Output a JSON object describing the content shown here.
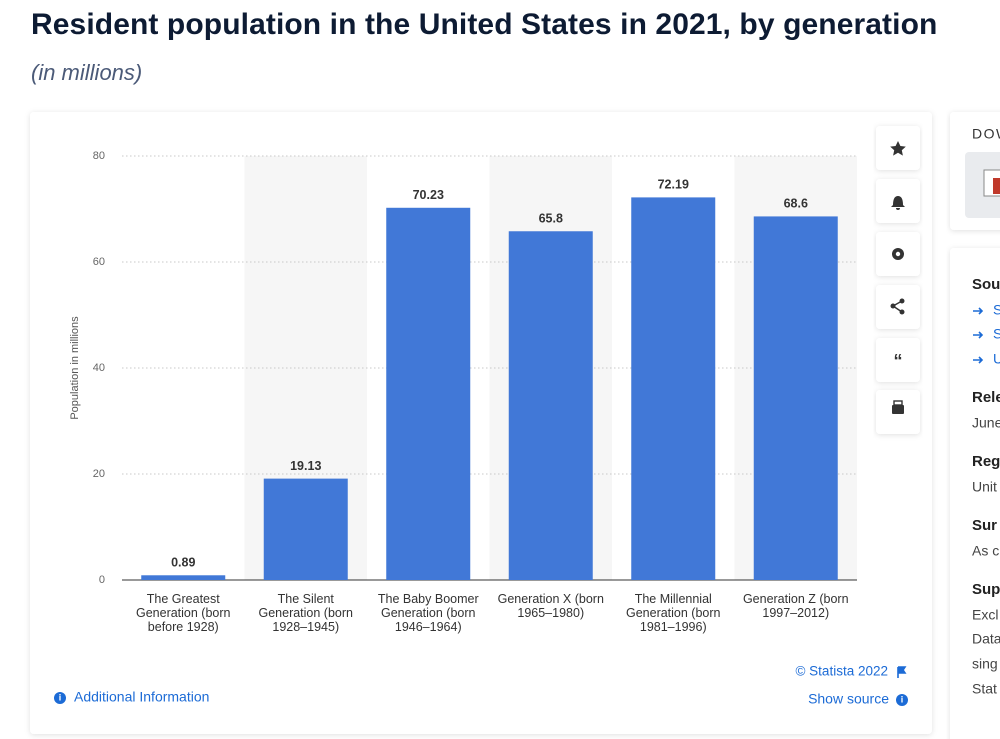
{
  "chart_data": {
    "type": "bar",
    "title": "Resident population in the United States in 2021, by generation",
    "subtitle": "(in millions)",
    "y_label": "Population in millions",
    "categories": [
      "The Greatest Generation (born before 1928)",
      "The Silent Generation (born 1928–1945)",
      "The Baby Boomer Generation (born 1946–1964)",
      "Generation X (born 1965–1980)",
      "The Millennial Generation (born 1981–1996)",
      "Generation Z (born 1997–2012)"
    ],
    "values": [
      0.89,
      19.13,
      70.23,
      65.8,
      72.19,
      68.6
    ],
    "color": "#4178d7",
    "ylim": [
      0,
      80
    ],
    "yticks": [
      0,
      20,
      40,
      60,
      80
    ],
    "grid": true
  },
  "footer": {
    "copyright": "© Statista 2022",
    "additional_info": "Additional Information",
    "show_source": "Show source"
  },
  "sidebar": {
    "download": "DOW",
    "source_heading": "Sou",
    "source_links": [
      "S",
      "S",
      "U"
    ],
    "release_heading": "Rele",
    "release": "June",
    "region_heading": "Reg",
    "region": "Unit",
    "survey_heading": "Sur",
    "survey": "As c",
    "supplementary_heading": "Sup",
    "supplementary": [
      "Excl",
      "Data",
      "sing",
      "Stat"
    ]
  }
}
